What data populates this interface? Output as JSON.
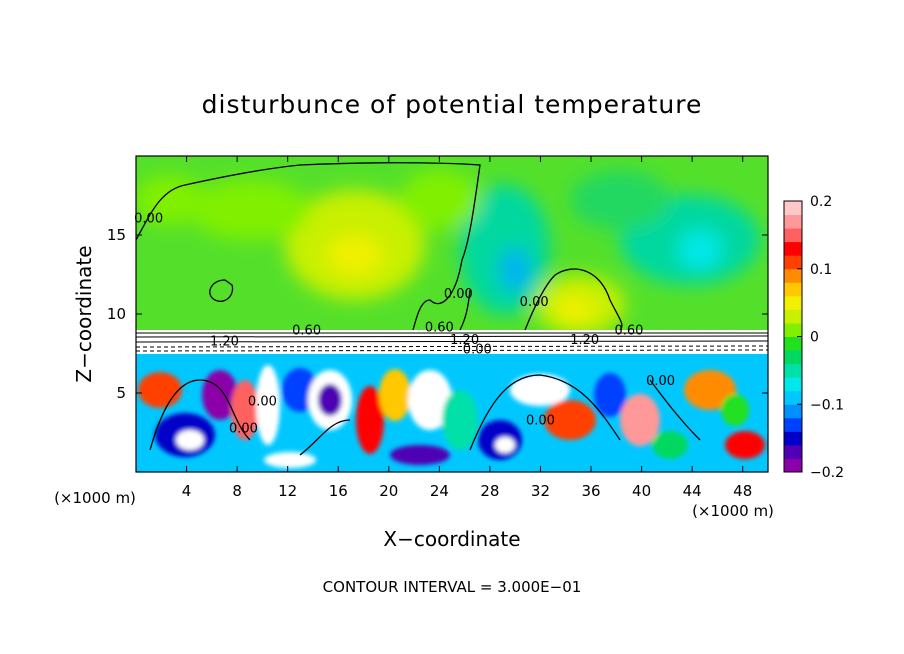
{
  "chart_data": {
    "type": "heatmap",
    "title": "disturbunce of potential temperature",
    "xlabel": "X−coordinate",
    "ylabel": "Z−coordinate",
    "x_unit_left": "(×1000 m)",
    "x_unit_right": "(×1000 m)",
    "xlim": [
      0,
      50
    ],
    "ylim": [
      0,
      20
    ],
    "x_ticks": [
      4,
      8,
      12,
      16,
      20,
      24,
      28,
      32,
      36,
      40,
      44,
      48
    ],
    "y_ticks": [
      5,
      10,
      15
    ],
    "footer": "CONTOUR INTERVAL = 3.000E−01",
    "colorbar": {
      "ticks": [
        "0.2",
        "0.1",
        "0",
        "−0.1",
        "−0.2"
      ],
      "tick_values": [
        0.2,
        0.1,
        0,
        -0.1,
        -0.2
      ],
      "range": [
        -0.2,
        0.2
      ],
      "colors": [
        "#8b00a8",
        "#5000b4",
        "#0000c8",
        "#0040ff",
        "#0090ff",
        "#00c8ff",
        "#00e8e8",
        "#00e0a8",
        "#00d860",
        "#20e020",
        "#80f000",
        "#c8f000",
        "#f0f000",
        "#ffc800",
        "#ff8c00",
        "#ff4000",
        "#ff0000",
        "#ff6060",
        "#ff9898",
        "#ffc8c8"
      ]
    },
    "contour_labels": [
      {
        "text": "0.00",
        "x": 1.0,
        "z": 15.8
      },
      {
        "text": "0.60",
        "x": 13.5,
        "z": 8.7
      },
      {
        "text": "1.20",
        "x": 7.0,
        "z": 8.0
      },
      {
        "text": "0.60",
        "x": 24.0,
        "z": 8.9
      },
      {
        "text": "0.00",
        "x": 25.5,
        "z": 11.0
      },
      {
        "text": "0.00",
        "x": 31.5,
        "z": 10.5
      },
      {
        "text": "1.20",
        "x": 26.0,
        "z": 8.1
      },
      {
        "text": "0.00",
        "x": 27.0,
        "z": 7.5
      },
      {
        "text": "1.20",
        "x": 35.5,
        "z": 8.1
      },
      {
        "text": "0.60",
        "x": 39.0,
        "z": 8.7
      },
      {
        "text": "0.00",
        "x": 41.5,
        "z": 5.5
      },
      {
        "text": "0.00",
        "x": 32.0,
        "z": 3.0
      },
      {
        "text": "0.00",
        "x": 8.5,
        "z": 2.5
      },
      {
        "text": "0.00",
        "x": 10.0,
        "z": 4.2
      }
    ]
  }
}
